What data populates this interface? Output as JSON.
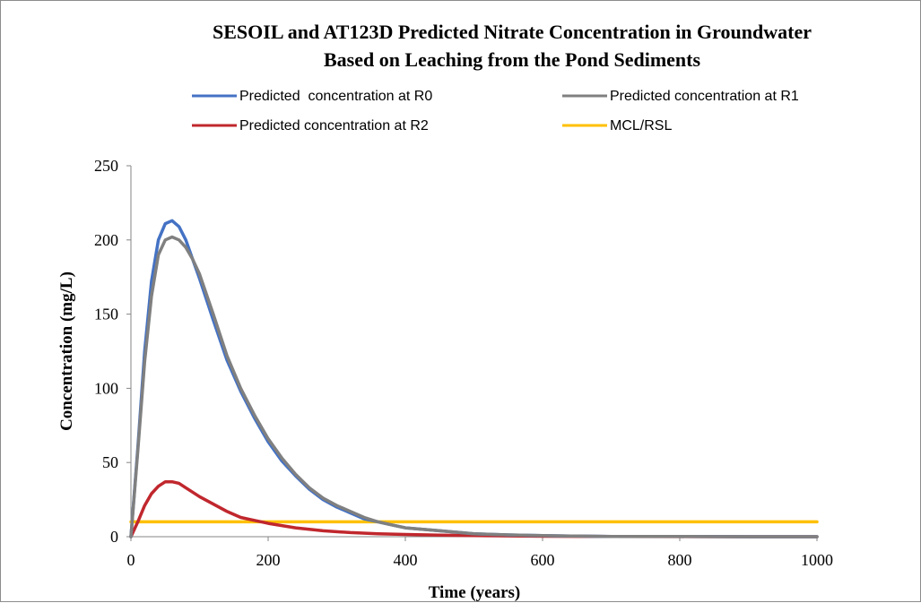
{
  "chart_data": {
    "type": "line",
    "title": [
      "SESOIL and AT123D Predicted Nitrate Concentration in Groundwater",
      "Based on Leaching from the Pond Sediments"
    ],
    "xlabel": "Time (years)",
    "ylabel": "Concentration (mg/L)",
    "xlim": [
      0,
      1000
    ],
    "ylim": [
      0,
      250
    ],
    "xticks": [
      "0",
      "200",
      "400",
      "600",
      "800",
      "1000"
    ],
    "yticks": [
      "0",
      "50",
      "100",
      "150",
      "200",
      "250"
    ],
    "grid": false,
    "legend_position": "top",
    "series": [
      {
        "name": "Predicted  concentration at R0",
        "color": "#4472c4",
        "x": [
          0,
          10,
          20,
          30,
          40,
          50,
          60,
          70,
          80,
          90,
          100,
          120,
          140,
          160,
          180,
          200,
          220,
          240,
          260,
          280,
          300,
          320,
          340,
          360,
          380,
          400,
          450,
          500,
          550,
          600,
          650,
          700,
          800,
          900,
          1000
        ],
        "y": [
          0,
          60,
          125,
          172,
          200,
          211,
          213,
          209,
          200,
          187,
          174,
          146,
          119,
          98,
          80,
          64,
          51,
          41,
          32,
          25,
          20,
          16,
          12,
          10,
          8,
          6,
          4,
          2,
          1.2,
          0.7,
          0.4,
          0.2,
          0.1,
          0,
          0
        ]
      },
      {
        "name": "Predicted concentration at R1",
        "color": "#808080",
        "x": [
          0,
          10,
          20,
          30,
          40,
          50,
          60,
          70,
          80,
          90,
          100,
          120,
          140,
          160,
          180,
          200,
          220,
          240,
          260,
          280,
          300,
          320,
          340,
          360,
          380,
          400,
          450,
          500,
          550,
          600,
          650,
          700,
          800,
          900,
          1000
        ],
        "y": [
          0,
          58,
          118,
          162,
          190,
          200,
          202,
          200,
          195,
          187,
          177,
          150,
          122,
          100,
          82,
          66,
          53,
          42,
          33,
          26,
          21,
          17,
          13,
          10,
          8,
          6,
          4,
          2,
          1.2,
          0.7,
          0.4,
          0.2,
          0.1,
          0,
          0
        ]
      },
      {
        "name": "Predicted concentration at R2",
        "color": "#c0272d",
        "x": [
          0,
          10,
          20,
          30,
          40,
          50,
          60,
          70,
          80,
          90,
          100,
          120,
          140,
          160,
          180,
          200,
          240,
          280,
          320,
          360,
          400,
          450,
          500,
          600,
          700,
          800,
          900,
          1000
        ],
        "y": [
          0,
          10,
          21,
          29,
          34,
          37,
          37,
          36,
          33,
          30,
          27,
          22,
          17,
          13,
          11,
          9,
          6,
          4,
          2.8,
          2,
          1.5,
          1,
          0.7,
          0.3,
          0.1,
          0.05,
          0,
          0
        ]
      },
      {
        "name": "MCL/RSL",
        "color": "#ffc000",
        "x": [
          0,
          1000
        ],
        "y": [
          10,
          10
        ]
      }
    ]
  }
}
